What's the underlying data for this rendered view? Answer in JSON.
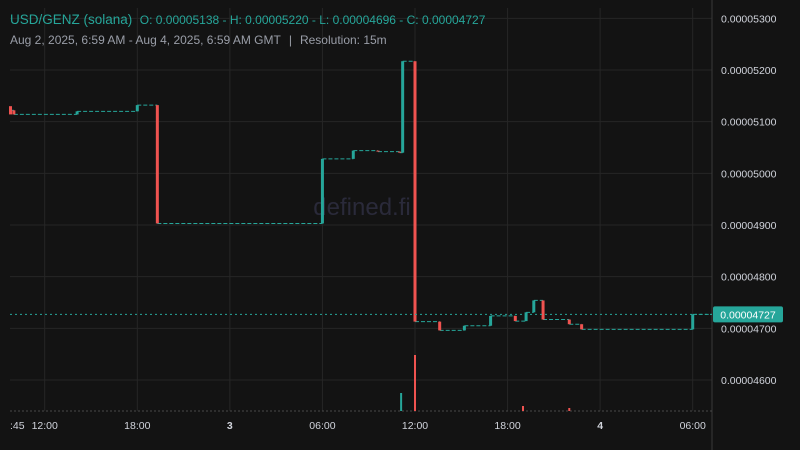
{
  "header": {
    "pair": "USD/GENZ (solana)",
    "ohlc": "O: 0.00005138 - H: 0.00005220 - L: 0.00004696 - C: 0.00004727",
    "range": "Aug 2, 2025, 6:59 AM - Aug 4, 2025, 6:59 AM GMT",
    "separator": "|",
    "resolution": "Resolution: 15m"
  },
  "watermark": "defined.fi",
  "colors": {
    "up": "#26a69a",
    "down": "#ef5350",
    "background": "#131313",
    "grid": "#262626",
    "text": "#d1d4dc"
  },
  "chart_data": {
    "type": "candlestick",
    "y_ticks": [
      "0.00005300",
      "0.00005200",
      "0.00005100",
      "0.00005000",
      "0.00004900",
      "0.00004800",
      "0.00004700",
      "0.00004600"
    ],
    "ylim": [
      4.54e-05,
      5.32e-05
    ],
    "x_ticks": [
      ":45",
      "12:00",
      "18:00",
      "3",
      "06:00",
      "12:00",
      "18:00",
      "4",
      "06:00"
    ],
    "x_tick_hours": [
      9.75,
      12,
      18,
      24,
      30,
      36,
      42,
      48,
      54
    ],
    "xlim_hours": [
      9.75,
      55.25
    ],
    "current_price_label": "0.00004727",
    "current_price": 4.727e-05,
    "price_steps": [
      {
        "from": 9.75,
        "to": 10.0,
        "price": 5.122e-05,
        "dir": "down"
      },
      {
        "from": 10.0,
        "to": 14.1,
        "price": 5.114e-05,
        "dir": "flat"
      },
      {
        "from": 14.1,
        "to": 18.0,
        "price": 5.12e-05,
        "dir": "up"
      },
      {
        "from": 18.0,
        "to": 19.3,
        "price": 5.132e-05,
        "dir": "up"
      },
      {
        "from": 19.3,
        "to": 30.0,
        "price": 4.903e-05,
        "dir": "down"
      },
      {
        "from": 30.0,
        "to": 32.0,
        "price": 5.028e-05,
        "dir": "up"
      },
      {
        "from": 32.0,
        "to": 33.6,
        "price": 5.044e-05,
        "dir": "up"
      },
      {
        "from": 33.6,
        "to": 35.0,
        "price": 5.042e-05,
        "dir": "down"
      },
      {
        "from": 35.0,
        "to": 35.2,
        "price": 5.04e-05,
        "dir": "down"
      },
      {
        "from": 35.2,
        "to": 36.0,
        "price": 5.217e-05,
        "dir": "up"
      },
      {
        "from": 36.0,
        "to": 37.6,
        "price": 4.713e-05,
        "dir": "down"
      },
      {
        "from": 37.6,
        "to": 39.2,
        "price": 4.696e-05,
        "dir": "down"
      },
      {
        "from": 39.2,
        "to": 40.9,
        "price": 4.705e-05,
        "dir": "up"
      },
      {
        "from": 40.9,
        "to": 42.5,
        "price": 4.724e-05,
        "dir": "up"
      },
      {
        "from": 42.5,
        "to": 43.2,
        "price": 4.714e-05,
        "dir": "down"
      },
      {
        "from": 43.2,
        "to": 43.7,
        "price": 4.731e-05,
        "dir": "up"
      },
      {
        "from": 43.7,
        "to": 44.3,
        "price": 4.754e-05,
        "dir": "up"
      },
      {
        "from": 44.3,
        "to": 46.0,
        "price": 4.717e-05,
        "dir": "down"
      },
      {
        "from": 46.0,
        "to": 46.8,
        "price": 4.708e-05,
        "dir": "down"
      },
      {
        "from": 46.8,
        "to": 54.0,
        "price": 4.698e-05,
        "dir": "down"
      },
      {
        "from": 54.0,
        "to": 55.25,
        "price": 4.727e-05,
        "dir": "up"
      }
    ],
    "volume_spikes": [
      {
        "t": 35.1,
        "h": 0.9,
        "dir": "up"
      },
      {
        "t": 36.0,
        "h": 2.8,
        "dir": "down"
      },
      {
        "t": 43.0,
        "h": 0.25,
        "dir": "down"
      },
      {
        "t": 46.0,
        "h": 0.15,
        "dir": "down"
      }
    ]
  }
}
